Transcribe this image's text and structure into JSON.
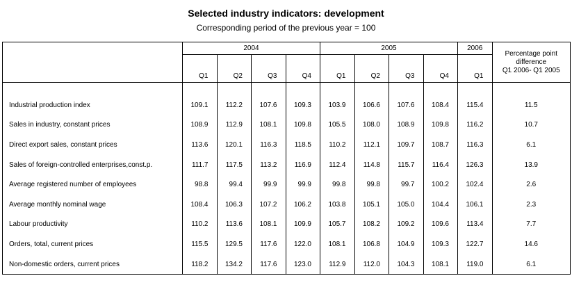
{
  "header": {
    "title": "Selected industry indicators: development",
    "subtitle": "Corresponding period of the previous year = 100"
  },
  "table": {
    "years": [
      {
        "label": "2004",
        "span": 4
      },
      {
        "label": "2005",
        "span": 4
      },
      {
        "label": "2006",
        "span": 1
      }
    ],
    "last_header": [
      "Percentage point",
      "difference",
      "Q1 2006- Q1 2005"
    ],
    "quarters": [
      "Q1",
      "Q2",
      "Q3",
      "Q4",
      "Q1",
      "Q2",
      "Q3",
      "Q4",
      "Q1"
    ],
    "rows": [
      [
        "Industrial production index",
        "109.1",
        "112.2",
        "107.6",
        "109.3",
        "103.9",
        "106.6",
        "107.6",
        "108.4",
        "115.4",
        "11.5"
      ],
      [
        "Sales in industry, constant prices",
        "108.9",
        "112.9",
        "108.1",
        "109.8",
        "105.5",
        "108.0",
        "108.9",
        "109.8",
        "116.2",
        "10.7"
      ],
      [
        "Direct export sales, constant prices",
        "113.6",
        "120.1",
        "116.3",
        "118.5",
        "110.2",
        "112.1",
        "109.7",
        "108.7",
        "116.3",
        "6.1"
      ],
      [
        "Sales of foreign-controlled enterprises,const.p.",
        "111.7",
        "117.5",
        "113.2",
        "116.9",
        "112.4",
        "114.8",
        "115.7",
        "116.4",
        "126.3",
        "13.9"
      ],
      [
        "Average registered number of employees",
        "98.8",
        "99.4",
        "99.9",
        "99.9",
        "99.8",
        "99.8",
        "99.7",
        "100.2",
        "102.4",
        "2.6"
      ],
      [
        "Average monthly nominal wage",
        "108.4",
        "106.3",
        "107.2",
        "106.2",
        "103.8",
        "105.1",
        "105.0",
        "104.4",
        "106.1",
        "2.3"
      ],
      [
        "Labour productivity",
        "110.2",
        "113.6",
        "108.1",
        "109.9",
        "105.7",
        "108.2",
        "109.2",
        "109.6",
        "113.4",
        "7.7"
      ],
      [
        "Orders, total, current prices",
        "115.5",
        "129.5",
        "117.6",
        "122.0",
        "108.1",
        "106.8",
        "104.9",
        "109.3",
        "122.7",
        "14.6"
      ],
      [
        "Non-domestic orders, current prices",
        "118.2",
        "134.2",
        "117.6",
        "123.0",
        "112.9",
        "112.0",
        "104.3",
        "108.1",
        "119.0",
        "6.1"
      ]
    ]
  }
}
